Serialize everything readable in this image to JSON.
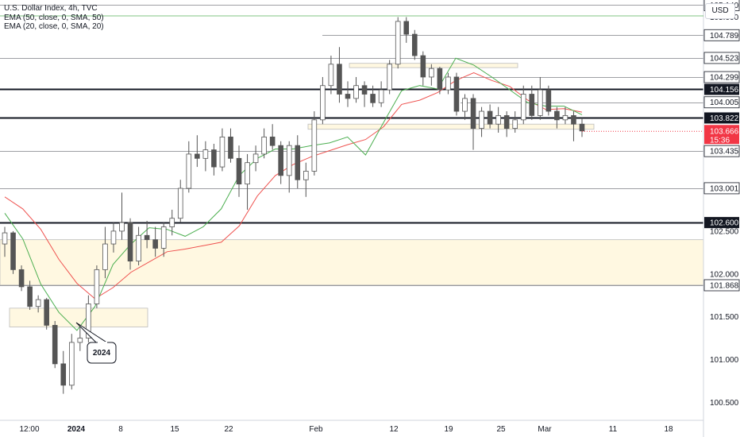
{
  "legend": {
    "title": "U.S. Dollar Index, 4h, TVC",
    "ema50": "EMA (50, close, 0, SMA, 50)",
    "ema20": "EMA (20, close, 0, SMA, 20)"
  },
  "currency_button": "USD",
  "annotation": {
    "label": "2024"
  },
  "colors": {
    "up": "#26a69a",
    "down": "#ef5350",
    "candle": "#555555",
    "ema50": "#ef5350",
    "ema20": "#4caf50",
    "zone_fill": "#fff8e1",
    "zone_stroke": "#bdbdbd",
    "price_tag": "#f23645",
    "level_tag": "#131722"
  },
  "chart_data": {
    "type": "candlestick",
    "title": "U.S. Dollar Index, 4h, TVC",
    "ylim": [
      100.29,
      105.2
    ],
    "y_ticks": [
      100.5,
      101.0,
      101.5,
      102.0,
      102.5,
      105.0
    ],
    "x_ticks": [
      "12:00",
      "2024",
      "8",
      "15",
      "22",
      "Feb",
      "12",
      "19",
      "25",
      "Mar",
      "11",
      "18"
    ],
    "price_levels": [
      {
        "value": 105.14,
        "label": "105.140",
        "style": "thin"
      },
      {
        "value": 104.789,
        "label": "104.789",
        "style": "thin"
      },
      {
        "value": 104.523,
        "label": "104.523",
        "style": "thin"
      },
      {
        "value": 104.299,
        "label": "104.299",
        "style": "thin"
      },
      {
        "value": 104.156,
        "label": "104.156",
        "style": "thick"
      },
      {
        "value": 104.005,
        "label": "104.005",
        "style": "thin"
      },
      {
        "value": 103.822,
        "label": "103.822",
        "style": "thick"
      },
      {
        "value": 103.435,
        "label": "103.435",
        "style": "thin"
      },
      {
        "value": 103.001,
        "label": "103.001",
        "style": "thin"
      },
      {
        "value": 102.6,
        "label": "102.600",
        "style": "thick"
      },
      {
        "value": 101.868,
        "label": "101.868",
        "style": "thin"
      }
    ],
    "current_price": {
      "value": 103.666,
      "label": "103.666",
      "countdown": "15:36"
    },
    "zones": [
      {
        "y_top": 102.4,
        "y_bottom": 101.87,
        "extends_to_axis": true
      },
      {
        "y_top": 101.6,
        "y_bottom": 101.38
      },
      {
        "y_top": 104.46,
        "y_bottom": 104.41
      },
      {
        "y_top": 103.75,
        "y_bottom": 103.69
      }
    ],
    "ema50_values": [
      102.9,
      102.76,
      102.52,
      102.17,
      101.89,
      101.71,
      101.84,
      102.02,
      102.14,
      102.26,
      102.29,
      102.33,
      102.37,
      102.56,
      102.91,
      103.15,
      103.28,
      103.37,
      103.44,
      103.51,
      103.57,
      103.72,
      103.98,
      104.03,
      104.12,
      104.26,
      104.35,
      104.26,
      104.19,
      104.03,
      103.92,
      103.93,
      103.89
    ],
    "ema20_values": [
      102.71,
      102.41,
      101.88,
      101.55,
      101.34,
      101.62,
      102.11,
      102.35,
      102.54,
      102.52,
      102.44,
      102.55,
      102.76,
      103.15,
      103.35,
      103.46,
      103.46,
      103.5,
      103.53,
      103.6,
      103.39,
      103.77,
      104.14,
      104.2,
      104.16,
      104.52,
      104.44,
      104.3,
      104.15,
      104.0,
      103.96,
      103.96,
      103.86
    ],
    "candles": [
      {
        "o": 102.35,
        "h": 102.55,
        "l": 102.2,
        "c": 102.48
      },
      {
        "o": 102.48,
        "h": 102.5,
        "l": 102.0,
        "c": 102.05
      },
      {
        "o": 102.05,
        "h": 102.1,
        "l": 101.8,
        "c": 101.85
      },
      {
        "o": 101.85,
        "h": 101.92,
        "l": 101.58,
        "c": 101.62
      },
      {
        "o": 101.62,
        "h": 101.75,
        "l": 101.55,
        "c": 101.7
      },
      {
        "o": 101.7,
        "h": 101.72,
        "l": 101.35,
        "c": 101.4
      },
      {
        "o": 101.4,
        "h": 101.45,
        "l": 100.9,
        "c": 100.95
      },
      {
        "o": 100.95,
        "h": 101.1,
        "l": 100.6,
        "c": 100.7
      },
      {
        "o": 100.7,
        "h": 101.3,
        "l": 100.65,
        "c": 101.2
      },
      {
        "o": 101.2,
        "h": 101.4,
        "l": 101.1,
        "c": 101.25
      },
      {
        "o": 101.25,
        "h": 101.75,
        "l": 101.2,
        "c": 101.65
      },
      {
        "o": 101.65,
        "h": 102.1,
        "l": 101.6,
        "c": 102.05
      },
      {
        "o": 102.05,
        "h": 102.55,
        "l": 101.95,
        "c": 102.35
      },
      {
        "o": 102.35,
        "h": 102.6,
        "l": 102.25,
        "c": 102.5
      },
      {
        "o": 102.5,
        "h": 102.95,
        "l": 102.4,
        "c": 102.6
      },
      {
        "o": 102.6,
        "h": 102.65,
        "l": 102.05,
        "c": 102.15
      },
      {
        "o": 102.15,
        "h": 102.55,
        "l": 102.1,
        "c": 102.45
      },
      {
        "o": 102.45,
        "h": 102.62,
        "l": 102.3,
        "c": 102.4
      },
      {
        "o": 102.4,
        "h": 102.55,
        "l": 102.2,
        "c": 102.3
      },
      {
        "o": 102.3,
        "h": 102.6,
        "l": 102.2,
        "c": 102.55
      },
      {
        "o": 102.55,
        "h": 102.75,
        "l": 102.45,
        "c": 102.65
      },
      {
        "o": 102.65,
        "h": 103.1,
        "l": 102.6,
        "c": 103.0
      },
      {
        "o": 103.0,
        "h": 103.55,
        "l": 102.95,
        "c": 103.4
      },
      {
        "o": 103.4,
        "h": 103.62,
        "l": 103.25,
        "c": 103.35
      },
      {
        "o": 103.35,
        "h": 103.55,
        "l": 103.2,
        "c": 103.45
      },
      {
        "o": 103.45,
        "h": 103.52,
        "l": 103.15,
        "c": 103.25
      },
      {
        "o": 103.25,
        "h": 103.7,
        "l": 103.2,
        "c": 103.6
      },
      {
        "o": 103.6,
        "h": 103.7,
        "l": 103.3,
        "c": 103.35
      },
      {
        "o": 103.35,
        "h": 103.5,
        "l": 102.9,
        "c": 103.05
      },
      {
        "o": 103.05,
        "h": 103.4,
        "l": 102.75,
        "c": 103.3
      },
      {
        "o": 103.3,
        "h": 103.5,
        "l": 103.2,
        "c": 103.4
      },
      {
        "o": 103.4,
        "h": 103.7,
        "l": 103.35,
        "c": 103.6
      },
      {
        "o": 103.6,
        "h": 103.75,
        "l": 103.45,
        "c": 103.5
      },
      {
        "o": 103.5,
        "h": 103.55,
        "l": 103.05,
        "c": 103.15
      },
      {
        "o": 103.15,
        "h": 103.55,
        "l": 102.95,
        "c": 103.5
      },
      {
        "o": 103.5,
        "h": 103.62,
        "l": 103.0,
        "c": 103.1
      },
      {
        "o": 103.1,
        "h": 103.3,
        "l": 102.9,
        "c": 103.2
      },
      {
        "o": 103.2,
        "h": 103.9,
        "l": 103.15,
        "c": 103.8
      },
      {
        "o": 103.8,
        "h": 104.3,
        "l": 103.75,
        "c": 104.2
      },
      {
        "o": 104.2,
        "h": 104.55,
        "l": 104.1,
        "c": 104.45
      },
      {
        "o": 104.45,
        "h": 104.65,
        "l": 104.0,
        "c": 104.1
      },
      {
        "o": 104.1,
        "h": 104.25,
        "l": 103.95,
        "c": 104.05
      },
      {
        "o": 104.05,
        "h": 104.3,
        "l": 104.0,
        "c": 104.2
      },
      {
        "o": 104.2,
        "h": 104.25,
        "l": 103.95,
        "c": 104.1
      },
      {
        "o": 104.1,
        "h": 104.2,
        "l": 103.95,
        "c": 104.0
      },
      {
        "o": 104.0,
        "h": 104.25,
        "l": 103.95,
        "c": 104.15
      },
      {
        "o": 104.15,
        "h": 104.5,
        "l": 104.1,
        "c": 104.45
      },
      {
        "o": 104.45,
        "h": 105.0,
        "l": 104.4,
        "c": 104.95
      },
      {
        "o": 104.95,
        "h": 105.0,
        "l": 104.7,
        "c": 104.8
      },
      {
        "o": 104.8,
        "h": 104.85,
        "l": 104.5,
        "c": 104.55
      },
      {
        "o": 104.55,
        "h": 104.6,
        "l": 104.2,
        "c": 104.3
      },
      {
        "o": 104.3,
        "h": 104.45,
        "l": 104.2,
        "c": 104.4
      },
      {
        "o": 104.4,
        "h": 104.42,
        "l": 104.1,
        "c": 104.15
      },
      {
        "o": 104.15,
        "h": 104.35,
        "l": 104.1,
        "c": 104.3
      },
      {
        "o": 104.3,
        "h": 104.35,
        "l": 103.85,
        "c": 103.9
      },
      {
        "o": 103.9,
        "h": 104.1,
        "l": 103.8,
        "c": 104.05
      },
      {
        "o": 104.05,
        "h": 104.1,
        "l": 103.45,
        "c": 103.7
      },
      {
        "o": 103.7,
        "h": 103.95,
        "l": 103.6,
        "c": 103.9
      },
      {
        "o": 103.9,
        "h": 103.98,
        "l": 103.7,
        "c": 103.75
      },
      {
        "o": 103.75,
        "h": 103.95,
        "l": 103.65,
        "c": 103.85
      },
      {
        "o": 103.85,
        "h": 103.9,
        "l": 103.6,
        "c": 103.7
      },
      {
        "o": 103.7,
        "h": 103.9,
        "l": 103.65,
        "c": 103.8
      },
      {
        "o": 103.8,
        "h": 104.2,
        "l": 103.75,
        "c": 104.1
      },
      {
        "o": 104.1,
        "h": 104.2,
        "l": 103.8,
        "c": 103.85
      },
      {
        "o": 103.85,
        "h": 104.3,
        "l": 103.8,
        "c": 104.15
      },
      {
        "o": 104.15,
        "h": 104.2,
        "l": 103.85,
        "c": 103.9
      },
      {
        "o": 103.9,
        "h": 103.95,
        "l": 103.7,
        "c": 103.8
      },
      {
        "o": 103.8,
        "h": 103.95,
        "l": 103.75,
        "c": 103.85
      },
      {
        "o": 103.85,
        "h": 103.9,
        "l": 103.55,
        "c": 103.75
      },
      {
        "o": 103.75,
        "h": 103.82,
        "l": 103.6,
        "c": 103.67
      }
    ]
  }
}
